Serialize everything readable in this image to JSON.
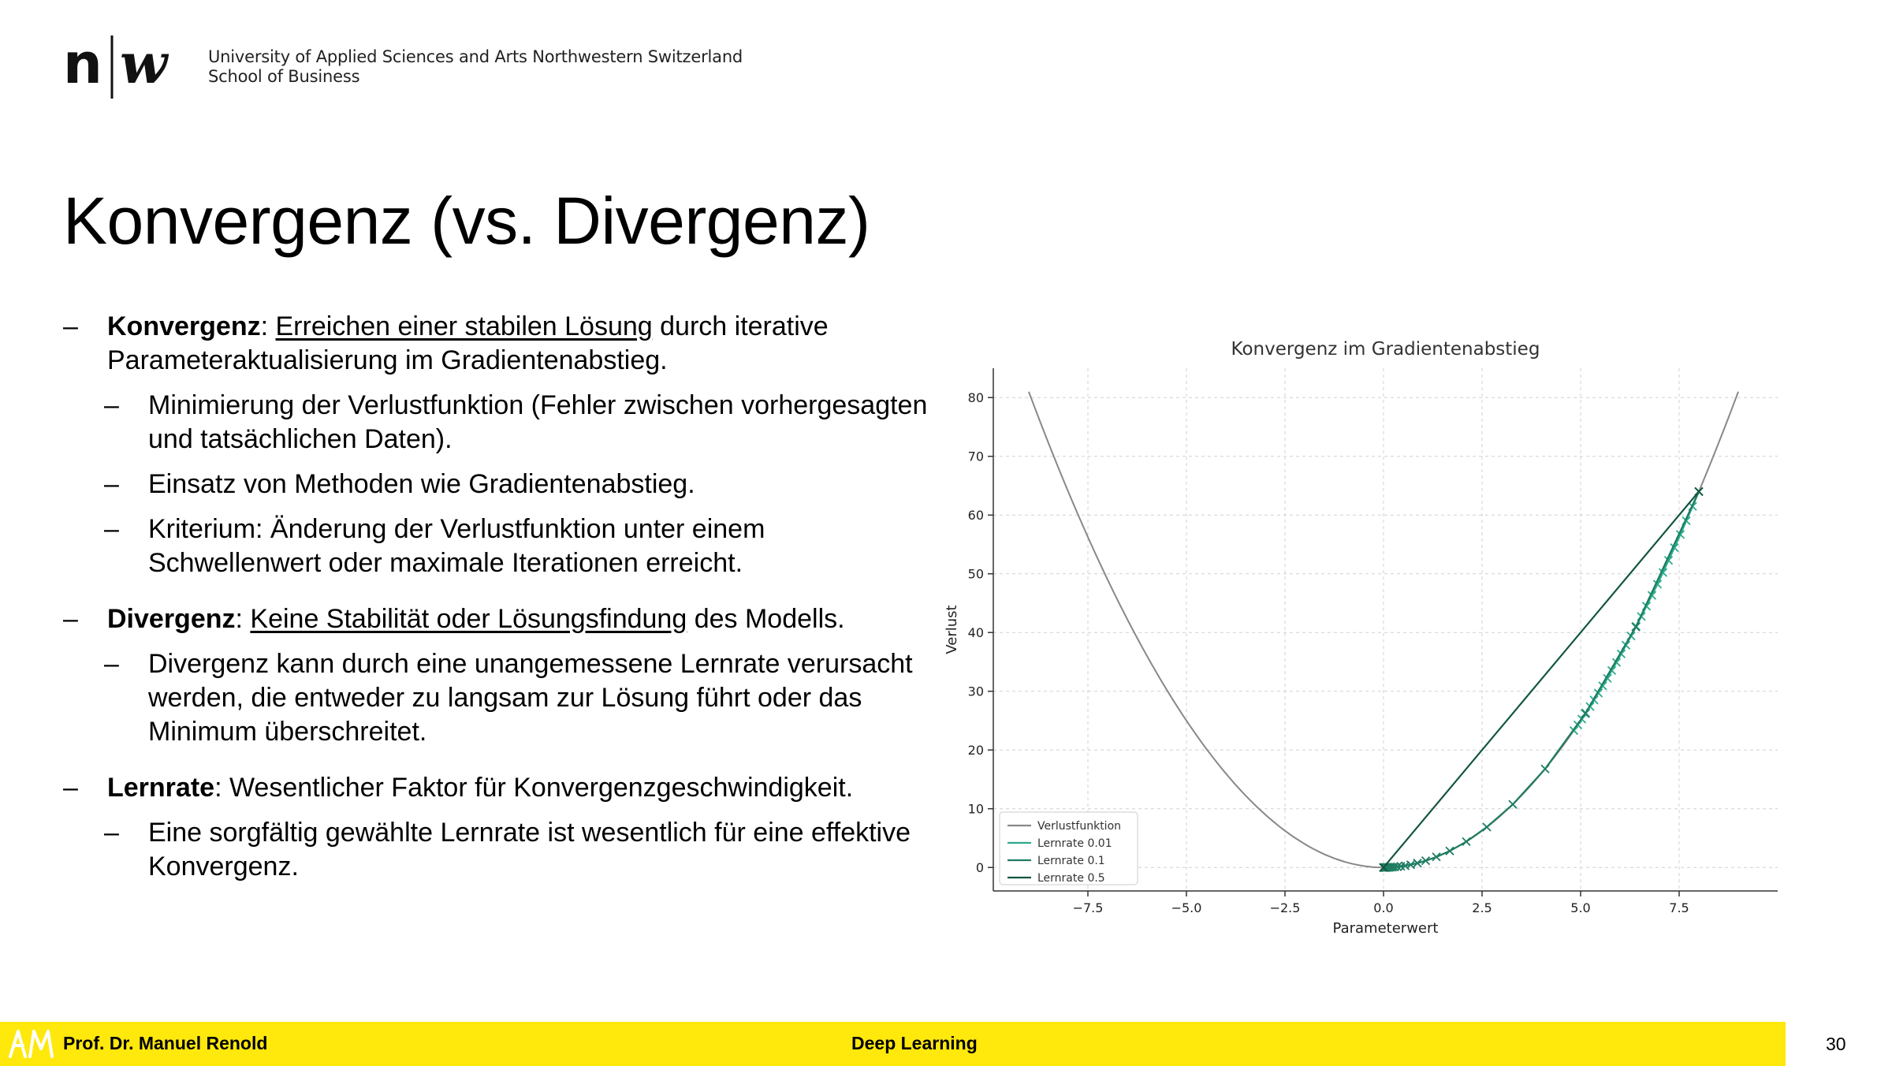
{
  "header": {
    "institution_line1": "University of Applied Sciences and Arts Northwestern Switzerland",
    "institution_line2": "School of Business"
  },
  "slide": {
    "title": "Konvergenz (vs. Divergenz)",
    "bullets": {
      "konvergenz": {
        "term": "Konvergenz",
        "sep": ": ",
        "underlined": "Erreichen einer stabilen Lösung",
        "rest": " durch iterative Parameteraktualisierung im Gradientenabstieg.",
        "sub": [
          "Minimierung der Verlustfunktion (Fehler zwischen vorhergesagten und tatsächlichen Daten).",
          "Einsatz von Methoden wie Gradientenabstieg.",
          "Kriterium: Änderung der Verlustfunktion unter einem Schwellenwert oder maximale Iterationen erreicht."
        ]
      },
      "divergenz": {
        "term": "Divergenz",
        "sep": ": ",
        "underlined": "Keine Stabilität oder Lösungsfindung",
        "rest": " des Modells.",
        "sub": [
          "Divergenz kann durch eine unangemessene Lernrate verursacht werden, die entweder zu langsam zur Lösung führt oder das Minimum überschreitet."
        ]
      },
      "lernrate": {
        "term": "Lernrate",
        "rest": ": Wesentlicher Faktor für Konvergenzgeschwindigkeit.",
        "sub": [
          "Eine sorgfältig gewählte Lernrate ist wesentlich für eine effektive Konvergenz."
        ]
      }
    }
  },
  "chart_data": {
    "type": "line",
    "title": "Konvergenz im Gradientenabstieg",
    "xlabel": "Parameterwert",
    "ylabel": "Verlust",
    "xlim": [
      -9.9,
      10.0
    ],
    "ylim": [
      -4,
      85
    ],
    "xticks": [
      -7.5,
      -5.0,
      -2.5,
      0.0,
      2.5,
      5.0,
      7.5
    ],
    "xtick_labels": [
      "−7.5",
      "−5.0",
      "−2.5",
      "0.0",
      "2.5",
      "5.0",
      "7.5"
    ],
    "yticks": [
      0,
      10,
      20,
      30,
      40,
      50,
      60,
      70,
      80
    ],
    "ytick_labels": [
      "0",
      "10",
      "20",
      "30",
      "40",
      "50",
      "60",
      "70",
      "80"
    ],
    "grid": true,
    "legend_position": "bottom-left",
    "series": [
      {
        "name": "Verlustfunktion",
        "color": "#888888",
        "marker": "none",
        "function": "x^2",
        "x_range": [
          -9,
          9
        ]
      },
      {
        "name": "Lernrate 0.01",
        "color": "#2aab8b",
        "marker": "x",
        "x": [
          8.0,
          7.84,
          7.68,
          7.53,
          7.38,
          7.23,
          7.09,
          6.95,
          6.81,
          6.67,
          6.54,
          6.41,
          6.28,
          6.15,
          6.03,
          5.91,
          5.79,
          5.68,
          5.56,
          5.45,
          5.34,
          5.24,
          5.13,
          5.03,
          4.93,
          4.83
        ],
        "y": [
          64.0,
          61.47,
          59.03,
          56.69,
          54.45,
          52.29,
          50.22,
          48.23,
          46.32,
          44.49,
          42.73,
          41.04,
          39.41,
          37.85,
          36.35,
          34.91,
          33.53,
          32.2,
          30.92,
          29.7,
          28.52,
          27.39,
          26.31,
          25.27,
          24.27,
          23.31
        ]
      },
      {
        "name": "Lernrate 0.1",
        "color": "#1e7d62",
        "marker": "x",
        "x": [
          8.0,
          6.4,
          5.12,
          4.1,
          3.28,
          2.62,
          2.1,
          1.68,
          1.34,
          1.07,
          0.86,
          0.69,
          0.55,
          0.44,
          0.35,
          0.28,
          0.23,
          0.18,
          0.14,
          0.12,
          0.09,
          0.07,
          0.06,
          0.05,
          0.04,
          0.03
        ],
        "y": [
          64.0,
          40.96,
          26.21,
          16.78,
          10.74,
          6.87,
          4.4,
          2.81,
          1.8,
          1.15,
          0.74,
          0.47,
          0.3,
          0.19,
          0.12,
          0.08,
          0.05,
          0.03,
          0.02,
          0.01,
          0.01,
          0.01,
          0.0,
          0.0,
          0.0,
          0.0
        ]
      },
      {
        "name": "Lernrate 0.5",
        "color": "#135640",
        "marker": "x",
        "x": [
          8.0,
          0.0,
          0.0,
          0.0
        ],
        "y": [
          64.0,
          0.0,
          0.0,
          0.0
        ]
      }
    ]
  },
  "footer": {
    "author": "Prof. Dr. Manuel Renold",
    "course": "Deep Learning",
    "page": "30"
  }
}
